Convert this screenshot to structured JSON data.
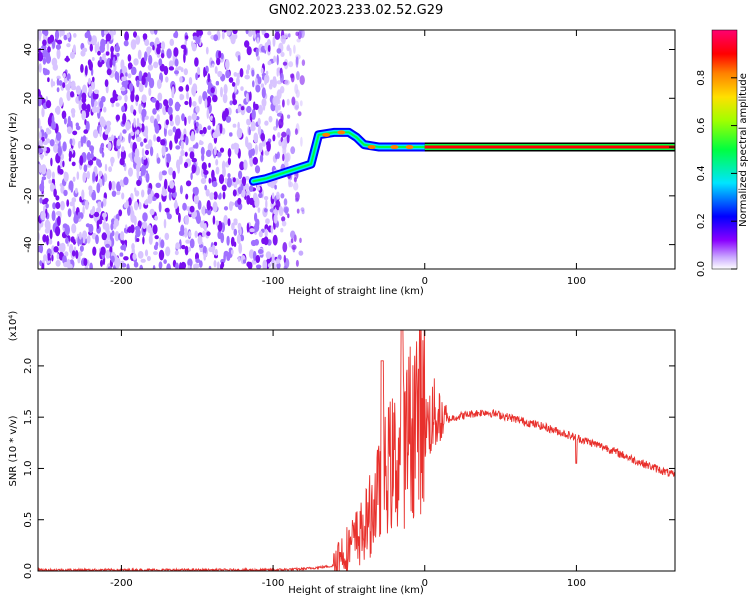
{
  "title": "GN02.2023.233.02.52.G29",
  "chart_data": [
    {
      "type": "heatmap",
      "xlabel": "Height of straight line (km)",
      "ylabel": "Frequency (Hz)",
      "xlim": [
        -255,
        165
      ],
      "ylim": [
        -50,
        48
      ],
      "xticks": [
        -200,
        -100,
        0,
        100
      ],
      "yticks": [
        -40,
        -20,
        0,
        20,
        40
      ],
      "colorbar": {
        "label": "Normalized spectral amplitude",
        "range": [
          0,
          1
        ],
        "ticks": [
          "0.0",
          "0.2",
          "0.4",
          "0.6",
          "0.8"
        ],
        "colors": [
          "#ffffff",
          "#8a00ff",
          "#0000ff",
          "#00e5ff",
          "#00ff40",
          "#a0ff00",
          "#ffe000",
          "#ff8000",
          "#ff0000",
          "#ff0070"
        ]
      },
      "ridge": [
        {
          "x": -113,
          "y": -14
        },
        {
          "x": -105,
          "y": -13
        },
        {
          "x": -95,
          "y": -11
        },
        {
          "x": -85,
          "y": -9
        },
        {
          "x": -75,
          "y": -7
        },
        {
          "x": -70,
          "y": 5
        },
        {
          "x": -60,
          "y": 6
        },
        {
          "x": -50,
          "y": 6
        },
        {
          "x": -45,
          "y": 4
        },
        {
          "x": -40,
          "y": 1
        },
        {
          "x": -30,
          "y": 0
        },
        {
          "x": -20,
          "y": 0
        },
        {
          "x": -10,
          "y": 0
        },
        {
          "x": 0,
          "y": 0
        },
        {
          "x": 165,
          "y": 0
        }
      ],
      "grid": false
    },
    {
      "type": "line",
      "xlabel": "Height of straight line (km)",
      "ylabel": "SNR (10 * v/v)",
      "y_multiplier": "(x10⁴)",
      "xlim": [
        -255,
        165
      ],
      "ylim": [
        0,
        2.35
      ],
      "xticks": [
        -200,
        -100,
        0,
        100
      ],
      "yticks": [
        0.0,
        0.5,
        1.0,
        1.5,
        2.0
      ],
      "series": [
        {
          "color": "#e8302c",
          "x": [
            -255,
            -200,
            -150,
            -100,
            -80,
            -60,
            -50,
            -40,
            -35,
            -30,
            -25,
            -20,
            -15,
            -10,
            -5,
            0,
            10,
            20,
            30,
            40,
            50,
            60,
            80,
            100,
            120,
            140,
            165
          ],
          "y": [
            0.01,
            0.01,
            0.01,
            0.01,
            0.02,
            0.05,
            0.15,
            0.3,
            0.45,
            0.6,
            0.8,
            0.85,
            0.9,
            1.1,
            1.25,
            1.3,
            1.45,
            1.5,
            1.53,
            1.55,
            1.52,
            1.48,
            1.4,
            1.3,
            1.2,
            1.07,
            0.93
          ]
        }
      ],
      "grid": false
    }
  ]
}
